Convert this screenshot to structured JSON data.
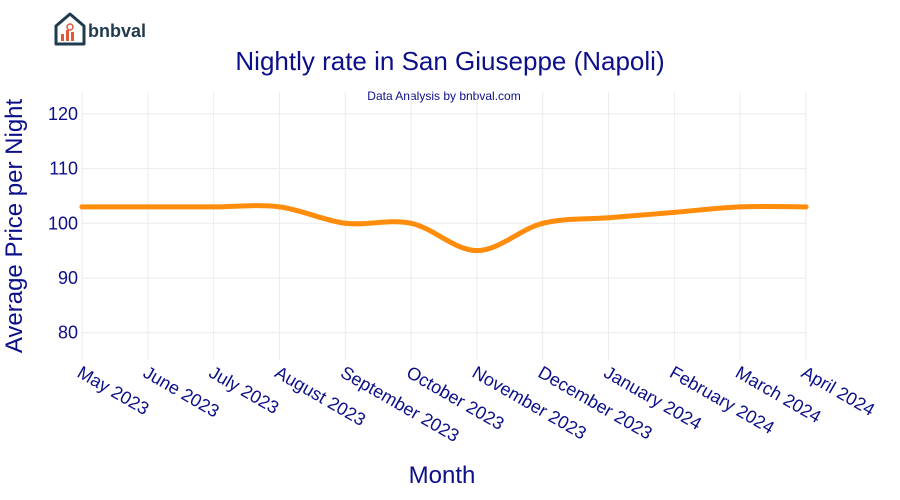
{
  "brand": {
    "name": "bnbval"
  },
  "colors": {
    "line": "#ff8c0a",
    "text": "#0c0f8a",
    "logo": "#1f3b4d",
    "logo_accent": "#e05a3a"
  },
  "chart_data": {
    "type": "line",
    "title": "Nightly rate in San Giuseppe (Napoli)",
    "subtitle": "Data Analysis by bnbval.com",
    "xlabel": "Month",
    "ylabel": "Average Price per Night",
    "ylim": [
      75,
      124
    ],
    "yticks": [
      80,
      90,
      100,
      110,
      120
    ],
    "grid": true,
    "legend": "none",
    "categories": [
      "May 2023",
      "June 2023",
      "July 2023",
      "August 2023",
      "September 2023",
      "October 2023",
      "November 2023",
      "December 2023",
      "January 2024",
      "February 2024",
      "March 2024",
      "April 2024"
    ],
    "series": [
      {
        "values": [
          103,
          103,
          103,
          103,
          100,
          100,
          95,
          100,
          101,
          102,
          103,
          103
        ]
      }
    ]
  }
}
